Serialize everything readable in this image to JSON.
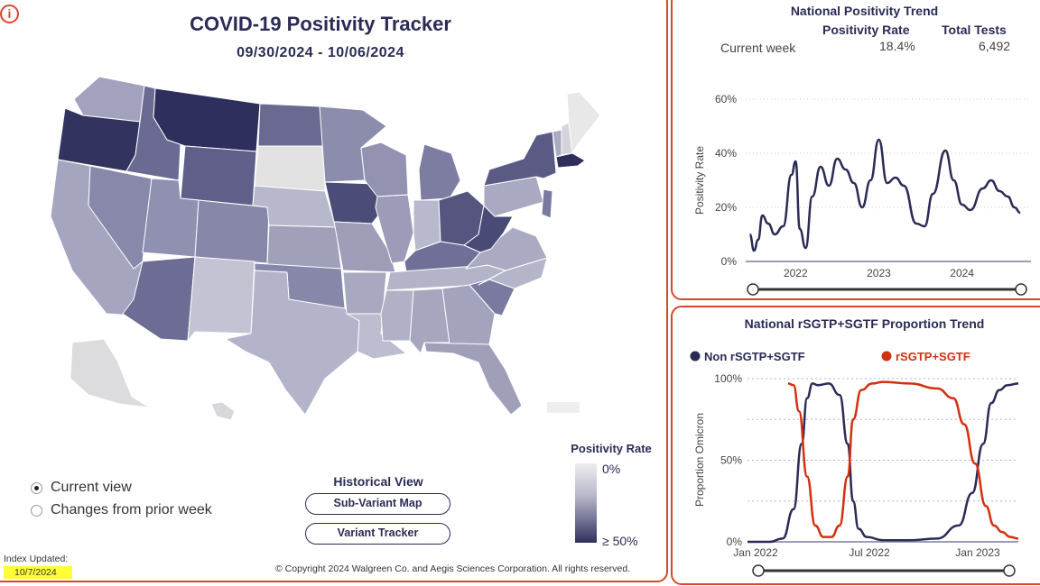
{
  "header": {
    "info_icon": "i",
    "title": "COVID-19 Positivity Tracker",
    "date_range": "09/30/2024 - 10/06/2024"
  },
  "legend": {
    "title": "Positivity Rate",
    "min_label": "0%",
    "max_label": "≥ 50%"
  },
  "view_options": [
    {
      "label": "Current view",
      "selected": true
    },
    {
      "label": "Changes from prior week",
      "selected": false
    }
  ],
  "historical": {
    "title": "Historical View",
    "buttons": [
      "Sub-Variant Map",
      "Variant Tracker"
    ]
  },
  "footer": {
    "index_label": "Index Updated:",
    "index_date": "10/7/2024",
    "copyright": "© Copyright 2024 Walgreen Co. and Aegis Sciences Corporation. All rights reserved."
  },
  "national_trend": {
    "title": "National Positivity Trend",
    "col_rate": "Positivity Rate",
    "col_tests": "Total Tests",
    "row_label": "Current week",
    "rate_value": "18.4%",
    "tests_value": "6,492"
  },
  "sgtf_trend": {
    "title": "National rSGTP+SGTF Proportion Trend"
  },
  "chart_data": [
    {
      "type": "line",
      "title": "National Positivity Trend",
      "ylabel": "Positivity Rate",
      "ylim": [
        0,
        60
      ],
      "yticks": [
        "0%",
        "20%",
        "40%",
        "60%"
      ],
      "xticks": [
        "2022",
        "2023",
        "2024"
      ],
      "grid": true,
      "series": [
        {
          "x": [
            2021.45,
            2021.5,
            2021.55,
            2021.6,
            2021.67,
            2021.75,
            2021.85,
            2021.95,
            2022.0,
            2022.05,
            2022.12,
            2022.2,
            2022.3,
            2022.4,
            2022.5,
            2022.6,
            2022.7,
            2022.8,
            2022.9,
            2023.0,
            2023.1,
            2023.2,
            2023.3,
            2023.45,
            2023.55,
            2023.65,
            2023.8,
            2023.9,
            2024.0,
            2024.1,
            2024.25,
            2024.35,
            2024.45,
            2024.55,
            2024.63,
            2024.7
          ],
          "y": [
            10,
            4,
            8,
            17,
            14,
            10,
            13,
            32,
            37,
            12,
            5,
            24,
            35,
            28,
            38,
            34,
            29,
            20,
            30,
            45,
            29,
            31,
            28,
            14,
            13,
            25,
            41,
            30,
            21,
            19,
            27,
            30,
            26,
            24,
            20,
            18
          ]
        }
      ]
    },
    {
      "type": "line",
      "title": "National rSGTP+SGTF Proportion Trend",
      "ylabel": "Proportion Omicron",
      "ylim": [
        0,
        100
      ],
      "yticks": [
        "0%",
        "50%",
        "100%"
      ],
      "xticks": [
        "Jan 2022",
        "Jul 2022",
        "Jan 2023"
      ],
      "legend": "top",
      "series": [
        {
          "name": "Non rSGTP+SGTF",
          "color": "#2b2b55",
          "x": [
            0,
            0.08,
            0.13,
            0.17,
            0.2,
            0.22,
            0.24,
            0.26,
            0.3,
            0.34,
            0.37,
            0.39,
            0.41,
            0.44,
            0.5,
            0.6,
            0.7,
            0.78,
            0.83,
            0.87,
            0.9,
            0.93,
            0.96,
            1.0
          ],
          "y": [
            0,
            0,
            2,
            20,
            60,
            88,
            97,
            96,
            97,
            90,
            60,
            25,
            8,
            3,
            1,
            1,
            2,
            10,
            30,
            60,
            85,
            93,
            96,
            97
          ]
        },
        {
          "name": "rSGTP+SGTF",
          "color": "#d2300f",
          "x": [
            0.15,
            0.17,
            0.19,
            0.22,
            0.25,
            0.28,
            0.31,
            0.34,
            0.37,
            0.39,
            0.42,
            0.46,
            0.5,
            0.6,
            0.7,
            0.76,
            0.8,
            0.84,
            0.88,
            0.91,
            0.94,
            0.97,
            1.0
          ],
          "y": [
            97,
            96,
            80,
            40,
            10,
            3,
            3,
            10,
            40,
            75,
            93,
            97,
            98,
            97,
            94,
            88,
            72,
            48,
            22,
            10,
            6,
            3,
            2
          ]
        }
      ]
    }
  ],
  "map_states": [
    {
      "id": "WA",
      "color": "#a2a2bf"
    },
    {
      "id": "OR",
      "color": "#33335f"
    },
    {
      "id": "CA",
      "color": "#a5a5c0"
    },
    {
      "id": "ID",
      "color": "#6a6a93"
    },
    {
      "id": "NV",
      "color": "#8888ab"
    },
    {
      "id": "MT",
      "color": "#2f2f5d"
    },
    {
      "id": "WY",
      "color": "#5f5f89"
    },
    {
      "id": "UT",
      "color": "#9090b0"
    },
    {
      "id": "AZ",
      "color": "#6c6c94"
    },
    {
      "id": "CO",
      "color": "#8787aa"
    },
    {
      "id": "NM",
      "color": "#c3c3d4"
    },
    {
      "id": "ND",
      "color": "#696992"
    },
    {
      "id": "SD",
      "color": "#e2e2e2"
    },
    {
      "id": "NE",
      "color": "#b8b8cc"
    },
    {
      "id": "KS",
      "color": "#a0a0bb"
    },
    {
      "id": "OK",
      "color": "#8787aa"
    },
    {
      "id": "TX",
      "color": "#b3b3c9"
    },
    {
      "id": "MN",
      "color": "#8c8cad"
    },
    {
      "id": "IA",
      "color": "#4c4c78"
    },
    {
      "id": "MO",
      "color": "#9d9db8"
    },
    {
      "id": "AR",
      "color": "#a8a8c1"
    },
    {
      "id": "LA",
      "color": "#bdbdd0"
    },
    {
      "id": "WI",
      "color": "#9393b1"
    },
    {
      "id": "IL",
      "color": "#9c9cb8"
    },
    {
      "id": "MI",
      "color": "#7d7da2"
    },
    {
      "id": "IN",
      "color": "#b9b9cd"
    },
    {
      "id": "OH",
      "color": "#55557f"
    },
    {
      "id": "KY",
      "color": "#6f6f97"
    },
    {
      "id": "TN",
      "color": "#b4b4c9"
    },
    {
      "id": "MS",
      "color": "#b0b0c6"
    },
    {
      "id": "AL",
      "color": "#a6a6bf"
    },
    {
      "id": "GA",
      "color": "#a3a3be"
    },
    {
      "id": "FL",
      "color": "#9f9fba"
    },
    {
      "id": "SC",
      "color": "#7a7aa0"
    },
    {
      "id": "NC",
      "color": "#b5b5ca"
    },
    {
      "id": "VA",
      "color": "#aaaac2"
    },
    {
      "id": "WV",
      "color": "#4a4a76"
    },
    {
      "id": "PA",
      "color": "#a9a9c2"
    },
    {
      "id": "NY",
      "color": "#5a5a84"
    },
    {
      "id": "ME",
      "color": "#e8e8e8"
    },
    {
      "id": "NH",
      "color": "#d4d4df"
    },
    {
      "id": "VT",
      "color": "#aaaac3"
    },
    {
      "id": "MA",
      "color": "#2f2f5d"
    },
    {
      "id": "NJ",
      "color": "#7a7aa0"
    },
    {
      "id": "AK",
      "color": "#dcdcdf"
    },
    {
      "id": "HI",
      "color": "#d8d8dc"
    }
  ]
}
